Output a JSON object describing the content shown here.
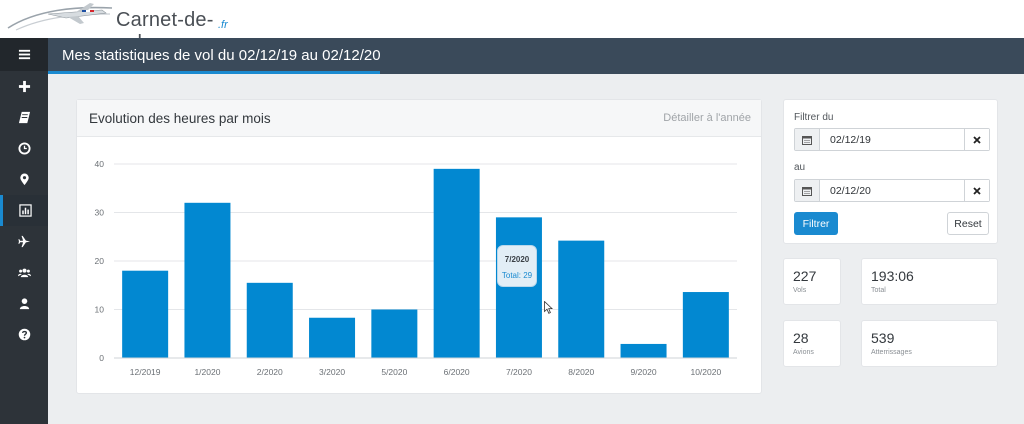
{
  "header": {
    "logo_text": "Carnet-de-vol",
    "logo_suffix": ".fr"
  },
  "sidebar": {
    "items": [
      {
        "icon": "menu-icon"
      },
      {
        "icon": "plus-icon"
      },
      {
        "icon": "book-icon"
      },
      {
        "icon": "clock-icon"
      },
      {
        "icon": "map-marker-icon"
      },
      {
        "icon": "bar-chart-icon",
        "active": true
      },
      {
        "icon": "plane-icon"
      },
      {
        "icon": "users-icon"
      },
      {
        "icon": "user-icon"
      },
      {
        "icon": "question-icon"
      }
    ]
  },
  "page": {
    "title": "Mes statistiques de vol du 02/12/19 au 02/12/20"
  },
  "chart_panel": {
    "title": "Evolution des heures par mois",
    "detail_link": "Détailler à l'année"
  },
  "chart_data": {
    "type": "bar",
    "categories": [
      "12/2019",
      "1/2020",
      "2/2020",
      "3/2020",
      "5/2020",
      "6/2020",
      "7/2020",
      "8/2020",
      "9/2020",
      "10/2020"
    ],
    "values": [
      18,
      32,
      15.5,
      8.3,
      10,
      39,
      29,
      24.2,
      2.9,
      13.6
    ],
    "ylim": [
      0,
      40
    ],
    "yticks": [
      0,
      10,
      20,
      30,
      40
    ],
    "grid": true,
    "bar_color": "#0288d1",
    "tooltip": {
      "title": "7/2020",
      "value": "Total: 29"
    }
  },
  "filter": {
    "from_label": "Filtrer du",
    "from_value": "02/12/19",
    "to_label": "au",
    "to_value": "02/12/20",
    "filter_button": "Filtrer",
    "reset_button": "Reset"
  },
  "stats": {
    "flights": {
      "value": "227",
      "label": "Vols"
    },
    "total": {
      "value": "193:06",
      "label": "Total"
    },
    "aircraft": {
      "value": "28",
      "label": "Avions"
    },
    "landings": {
      "value": "539",
      "label": "Atterrissages"
    }
  },
  "colors": {
    "accent": "#1a8ad0",
    "sidebar": "#2d3339",
    "titlebar": "#3a4a5a"
  }
}
